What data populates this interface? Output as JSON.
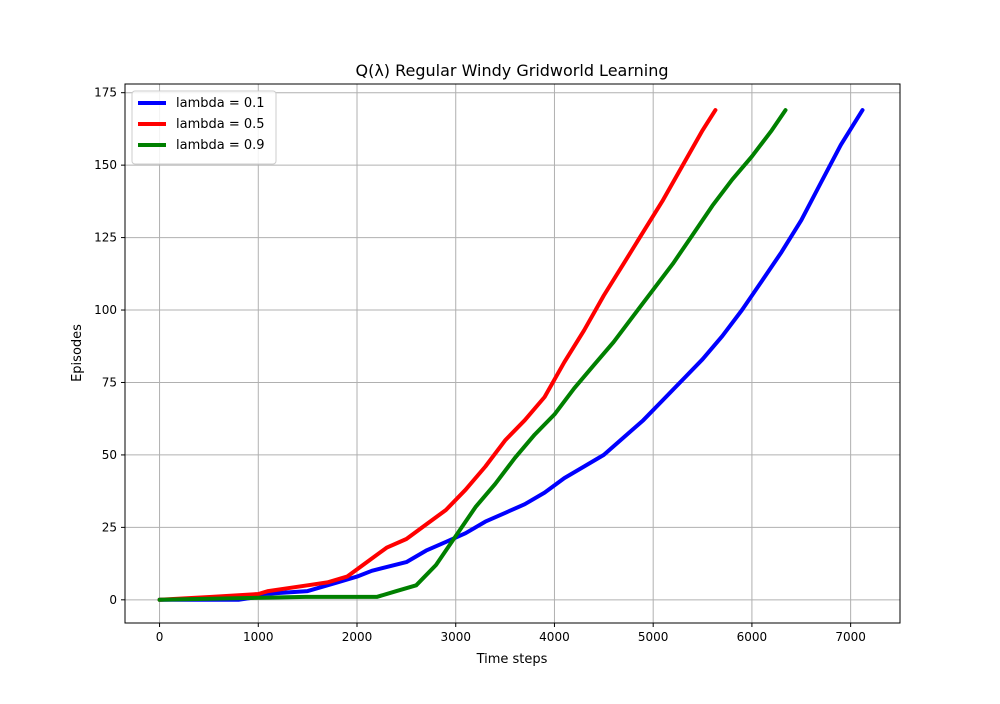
{
  "chart_data": {
    "type": "line",
    "title": "Q(λ) Regular Windy Gridworld Learning",
    "xlabel": "Time steps",
    "ylabel": "Episodes",
    "xlim": [
      -350,
      7500
    ],
    "ylim": [
      -8,
      178
    ],
    "xticks": [
      0,
      1000,
      2000,
      3000,
      4000,
      5000,
      6000,
      7000
    ],
    "yticks": [
      0,
      25,
      50,
      75,
      100,
      125,
      150,
      175
    ],
    "grid": true,
    "legend_position": "top-left",
    "series": [
      {
        "name": "lambda = 0.1",
        "color": "#0000ff",
        "x": [
          0,
          800,
          1000,
          1050,
          1500,
          1800,
          2000,
          2150,
          2500,
          2700,
          2900,
          3100,
          3300,
          3500,
          3700,
          3900,
          4100,
          4300,
          4500,
          4700,
          4900,
          5100,
          5300,
          5500,
          5700,
          5900,
          6100,
          6300,
          6500,
          6700,
          6900,
          7120
        ],
        "y": [
          0,
          0,
          1,
          2,
          3,
          6,
          8,
          10,
          13,
          17,
          20,
          23,
          27,
          30,
          33,
          37,
          42,
          46,
          50,
          56,
          62,
          69,
          76,
          83,
          91,
          100,
          110,
          120,
          131,
          144,
          157,
          169
        ]
      },
      {
        "name": "lambda = 0.5",
        "color": "#ff0000",
        "x": [
          0,
          530,
          1000,
          1100,
          1300,
          1500,
          1700,
          1900,
          2100,
          2300,
          2500,
          2700,
          2900,
          3100,
          3300,
          3500,
          3700,
          3900,
          4100,
          4300,
          4500,
          4700,
          4900,
          5100,
          5300,
          5500,
          5630
        ],
        "y": [
          0,
          1,
          2,
          3,
          4,
          5,
          6,
          8,
          13,
          18,
          21,
          26,
          31,
          38,
          46,
          55,
          62,
          70,
          82,
          93,
          105,
          116,
          127,
          138,
          150,
          162,
          169
        ]
      },
      {
        "name": "lambda = 0.9",
        "color": "#008000",
        "x": [
          0,
          1480,
          2200,
          2400,
          2600,
          2800,
          3000,
          3200,
          3400,
          3600,
          3800,
          4000,
          4200,
          4400,
          4600,
          4800,
          5000,
          5200,
          5400,
          5600,
          5800,
          6000,
          6200,
          6340
        ],
        "y": [
          0,
          1,
          1,
          3,
          5,
          12,
          22,
          32,
          40,
          49,
          57,
          64,
          73,
          81,
          89,
          98,
          107,
          116,
          126,
          136,
          145,
          153,
          162,
          169
        ]
      }
    ]
  }
}
